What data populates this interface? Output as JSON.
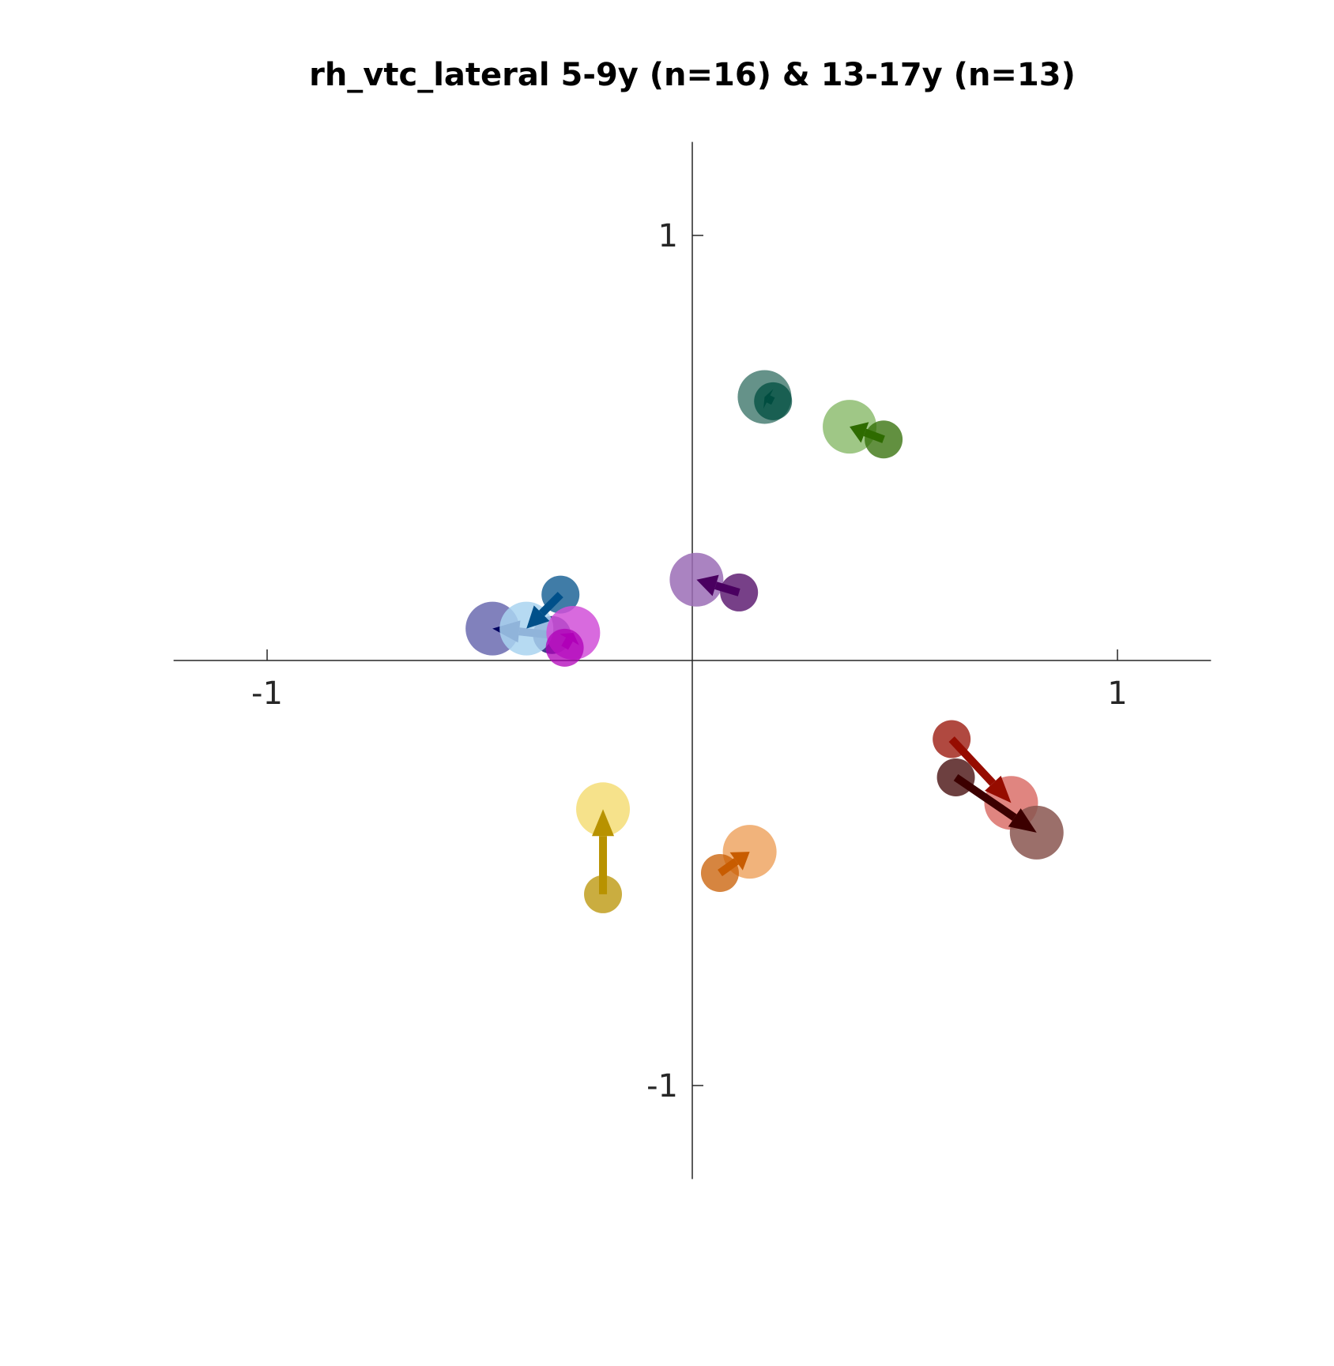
{
  "chart_data": {
    "type": "scatter",
    "title": "rh_vtc_lateral 5-9y (n=16) & 13-17y (n=13)",
    "xlabel": "",
    "ylabel": "",
    "xlim": [
      -1.22,
      1.22
    ],
    "ylim": [
      -1.22,
      1.22
    ],
    "xticks": [
      {
        "value": -1,
        "label": "-1"
      },
      {
        "value": 1,
        "label": "1"
      }
    ],
    "yticks": [
      {
        "value": 1,
        "label": "1"
      },
      {
        "value": -1,
        "label": "-1"
      }
    ],
    "grid": false,
    "legend": "none",
    "series": [
      {
        "color": "#4a7f74",
        "arrow_color": "#004d40",
        "young": [
          0.19,
          0.61
        ],
        "teen": [
          0.17,
          0.62
        ]
      },
      {
        "color": "#8ebd71",
        "arrow_color": "#2e6b00",
        "young": [
          0.45,
          0.52
        ],
        "teen": [
          0.37,
          0.55
        ]
      },
      {
        "color": "#9b6db6",
        "arrow_color": "#4a0060",
        "young": [
          0.11,
          0.16
        ],
        "teen": [
          0.01,
          0.19
        ]
      },
      {
        "color": "#6b6bb0",
        "arrow_color": "#000060",
        "young": [
          -0.33,
          0.06
        ],
        "teen": [
          -0.47,
          0.075
        ]
      },
      {
        "color": "#a9d3f0",
        "arrow_color": "#00508a",
        "young": [
          -0.31,
          0.155
        ],
        "teen": [
          -0.39,
          0.075
        ]
      },
      {
        "color": "#d150d8",
        "arrow_color": "#b000b8",
        "young": [
          -0.3,
          0.03
        ],
        "teen": [
          -0.28,
          0.065
        ]
      },
      {
        "color": "#f5dd77",
        "arrow_color": "#b89200",
        "young": [
          -0.21,
          -0.55
        ],
        "teen": [
          -0.21,
          -0.35
        ]
      },
      {
        "color": "#eea664",
        "arrow_color": "#c85c00",
        "young": [
          0.065,
          -0.5
        ],
        "teen": [
          0.135,
          -0.45
        ]
      },
      {
        "color": "#db706a",
        "arrow_color": "#960c00",
        "young": [
          0.61,
          -0.185
        ],
        "teen": [
          0.75,
          -0.335
        ]
      },
      {
        "color": "#8a5650",
        "arrow_color": "#3c0000",
        "young": [
          0.62,
          -0.275
        ],
        "teen": [
          0.81,
          -0.405
        ]
      }
    ]
  }
}
